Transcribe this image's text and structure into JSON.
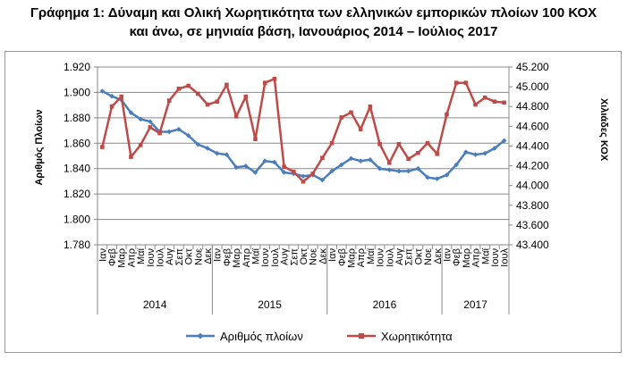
{
  "title_line1": "Γράφημα 1: Δύναμη και Ολική Χωρητικότητα των ελληνικών εμπορικών πλοίων 100 ΚΟΧ",
  "title_line2": "και άνω, σε μηνιαία βάση, Ιανουάριος  2014 – Ιούλιος 2017",
  "chart_data": {
    "type": "line",
    "title": "Γράφημα 1: Δύναμη και Ολική Χωρητικότητα των ελληνικών εμπορικών πλοίων 100 ΚΟΧ και άνω, σε μηνιαία βάση, Ιανουάριος  2014 – Ιούλιος 2017",
    "ylabel_left": "Αριθμός Πλοίων",
    "ylabel_right": "Χιλιάδες ΚΟΧ",
    "ylim_left": [
      1.78,
      1.92
    ],
    "ylim_right": [
      43.4,
      45.2
    ],
    "yticks_left": [
      "1.780",
      "1.800",
      "1.820",
      "1.840",
      "1.860",
      "1.880",
      "1.900",
      "1.920"
    ],
    "yticks_right": [
      "43.400",
      "43.600",
      "43.800",
      "44.000",
      "44.200",
      "44.400",
      "44.600",
      "44.800",
      "45.000",
      "45.200"
    ],
    "grid": true,
    "legend_position": "bottom",
    "categories": [
      "Ιαν",
      "Φεβ",
      "Μαρ",
      "Απρ",
      "Μαϊ",
      "Ιουν",
      "Ιουλ",
      "Αυγ",
      "Σεπ",
      "Οκτ",
      "Νοε",
      "Δεκ",
      "Ιαν",
      "Φεβ",
      "Μαρ",
      "Απρ",
      "Μαϊ",
      "Ιουν",
      "Ιουλ",
      "Αυγ",
      "Σεπ",
      "Οκτ",
      "Νοε",
      "Δεκ",
      "Ιαν",
      "Φεβ",
      "Μαρ",
      "Απρ",
      "Μαϊ",
      "Ιουν",
      "Ιουλ",
      "Αυγ",
      "Σεπ",
      "Οκτ",
      "Νοε",
      "Δεκ",
      "Ιαν",
      "Φεβ",
      "Μαρ",
      "Απρ",
      "Μαϊ",
      "Ιουν",
      "Ιουλ"
    ],
    "years": [
      {
        "label": "2014",
        "count": 12
      },
      {
        "label": "2015",
        "count": 12
      },
      {
        "label": "2016",
        "count": 12
      },
      {
        "label": "2017",
        "count": 7
      }
    ],
    "series": [
      {
        "name": "Αριθμός πλοίων",
        "axis": "left",
        "color": "#4a7ebb",
        "values": [
          1.901,
          1.897,
          1.894,
          1.884,
          1.879,
          1.877,
          1.869,
          1.869,
          1.871,
          1.866,
          1.859,
          1.856,
          1.852,
          1.851,
          1.841,
          1.842,
          1.837,
          1.846,
          1.845,
          1.837,
          1.836,
          1.834,
          1.835,
          1.831,
          1.838,
          1.843,
          1.848,
          1.846,
          1.847,
          1.84,
          1.839,
          1.838,
          1.838,
          1.84,
          1.833,
          1.832,
          1.835,
          1.843,
          1.853,
          1.851,
          1.852,
          1.856,
          1.862
        ]
      },
      {
        "name": "Χωρητικότητα",
        "axis": "right",
        "color": "#be4b48",
        "values": [
          44.39,
          44.8,
          44.9,
          44.29,
          44.41,
          44.59,
          44.53,
          44.86,
          44.98,
          45.01,
          44.93,
          44.82,
          44.85,
          45.02,
          44.7,
          44.9,
          44.47,
          45.04,
          45.08,
          44.19,
          44.14,
          44.04,
          44.12,
          44.28,
          44.43,
          44.69,
          44.74,
          44.57,
          44.8,
          44.42,
          44.23,
          44.42,
          44.27,
          44.33,
          44.43,
          44.32,
          44.72,
          45.04,
          45.04,
          44.82,
          44.89,
          44.85,
          44.84
        ]
      }
    ]
  }
}
